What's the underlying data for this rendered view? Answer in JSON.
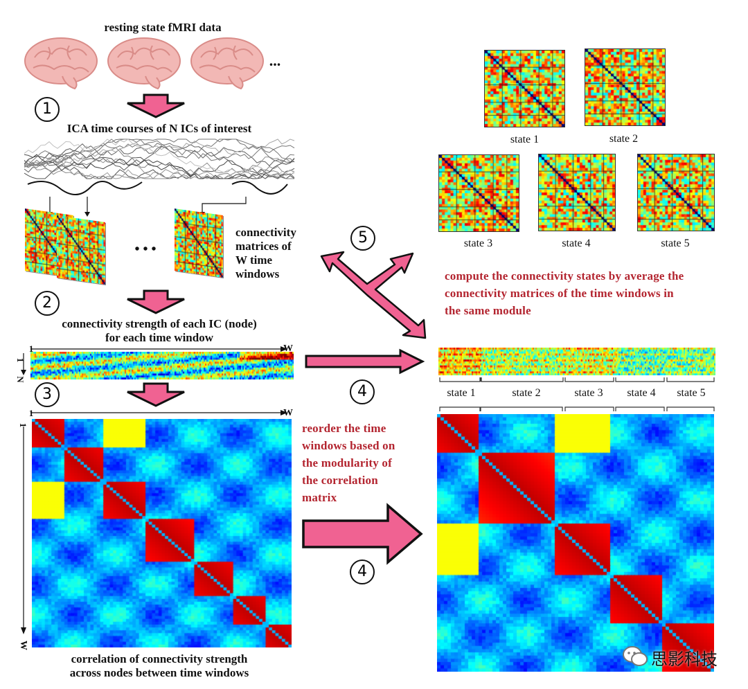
{
  "title_top": "resting state fMRI data",
  "ellipsis": "...",
  "step_numbers": {
    "s1": "1",
    "s2": "2",
    "s3": "3",
    "s4a": "4",
    "s4b": "4",
    "s5": "5"
  },
  "ica_label": "ICA time courses of N ICs of interest",
  "windows_ellipsis": "• • •",
  "connectivity_label": [
    "connectivity",
    "matrices of",
    "W time",
    "windows"
  ],
  "strength_label": [
    "connectivity strength of each IC (node)",
    "for each time window"
  ],
  "strip_axis": {
    "x_start": "1",
    "x_end": "W",
    "y_start": "1",
    "y_end": "N"
  },
  "corr_axis": {
    "x_start": "1",
    "x_end": "W",
    "y_start": "1",
    "y_end": "W"
  },
  "corr_label": [
    "correlation of connectivity strength",
    "across nodes between time windows"
  ],
  "reorder_label": [
    "reorder the time",
    "windows based on",
    "the modularity of",
    "the correlation",
    "matrix"
  ],
  "compute_label": [
    "compute the connectivity states by average the",
    "connectivity matrices of the time windows in",
    "the same module"
  ],
  "states_top": [
    "state 1",
    "state 2"
  ],
  "states_mid": [
    "state 3",
    "state 4",
    "state 5"
  ],
  "states_bracket": [
    "state 1",
    "state 2",
    "state 3",
    "state 4",
    "state 5"
  ],
  "watermark": "思影科技",
  "colors": {
    "arrow_fill": "#f06292",
    "arrow_stroke": "#111111",
    "red_text": "#b3242f"
  }
}
